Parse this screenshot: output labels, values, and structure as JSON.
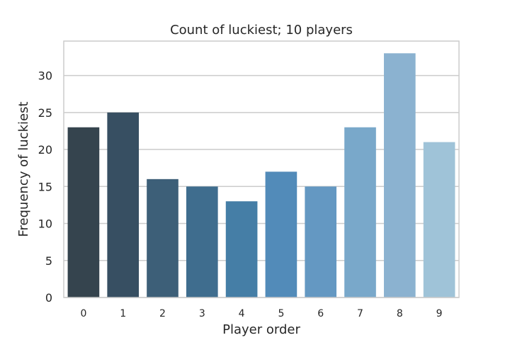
{
  "chart_data": {
    "type": "bar",
    "title": "Count of luckiest; 10 players",
    "xlabel": "Player order",
    "ylabel": "Frequency of luckiest",
    "categories": [
      "0",
      "1",
      "2",
      "3",
      "4",
      "5",
      "6",
      "7",
      "8",
      "9"
    ],
    "values": [
      23,
      25,
      16,
      15,
      13,
      17,
      15,
      23,
      33,
      21
    ],
    "ylim": [
      0,
      34.65
    ],
    "yticks": [
      0,
      5,
      10,
      15,
      20,
      25,
      30
    ],
    "grid": "horizontal",
    "legend": "none",
    "colors": [
      "#35444e",
      "#374f62",
      "#3d5f78",
      "#3f6d8e",
      "#457ea6",
      "#528bb9",
      "#6498c2",
      "#79a8ca",
      "#8bb2d0",
      "#9fc3d8"
    ],
    "grid_color": "#cccccc",
    "background": "#ffffff"
  }
}
